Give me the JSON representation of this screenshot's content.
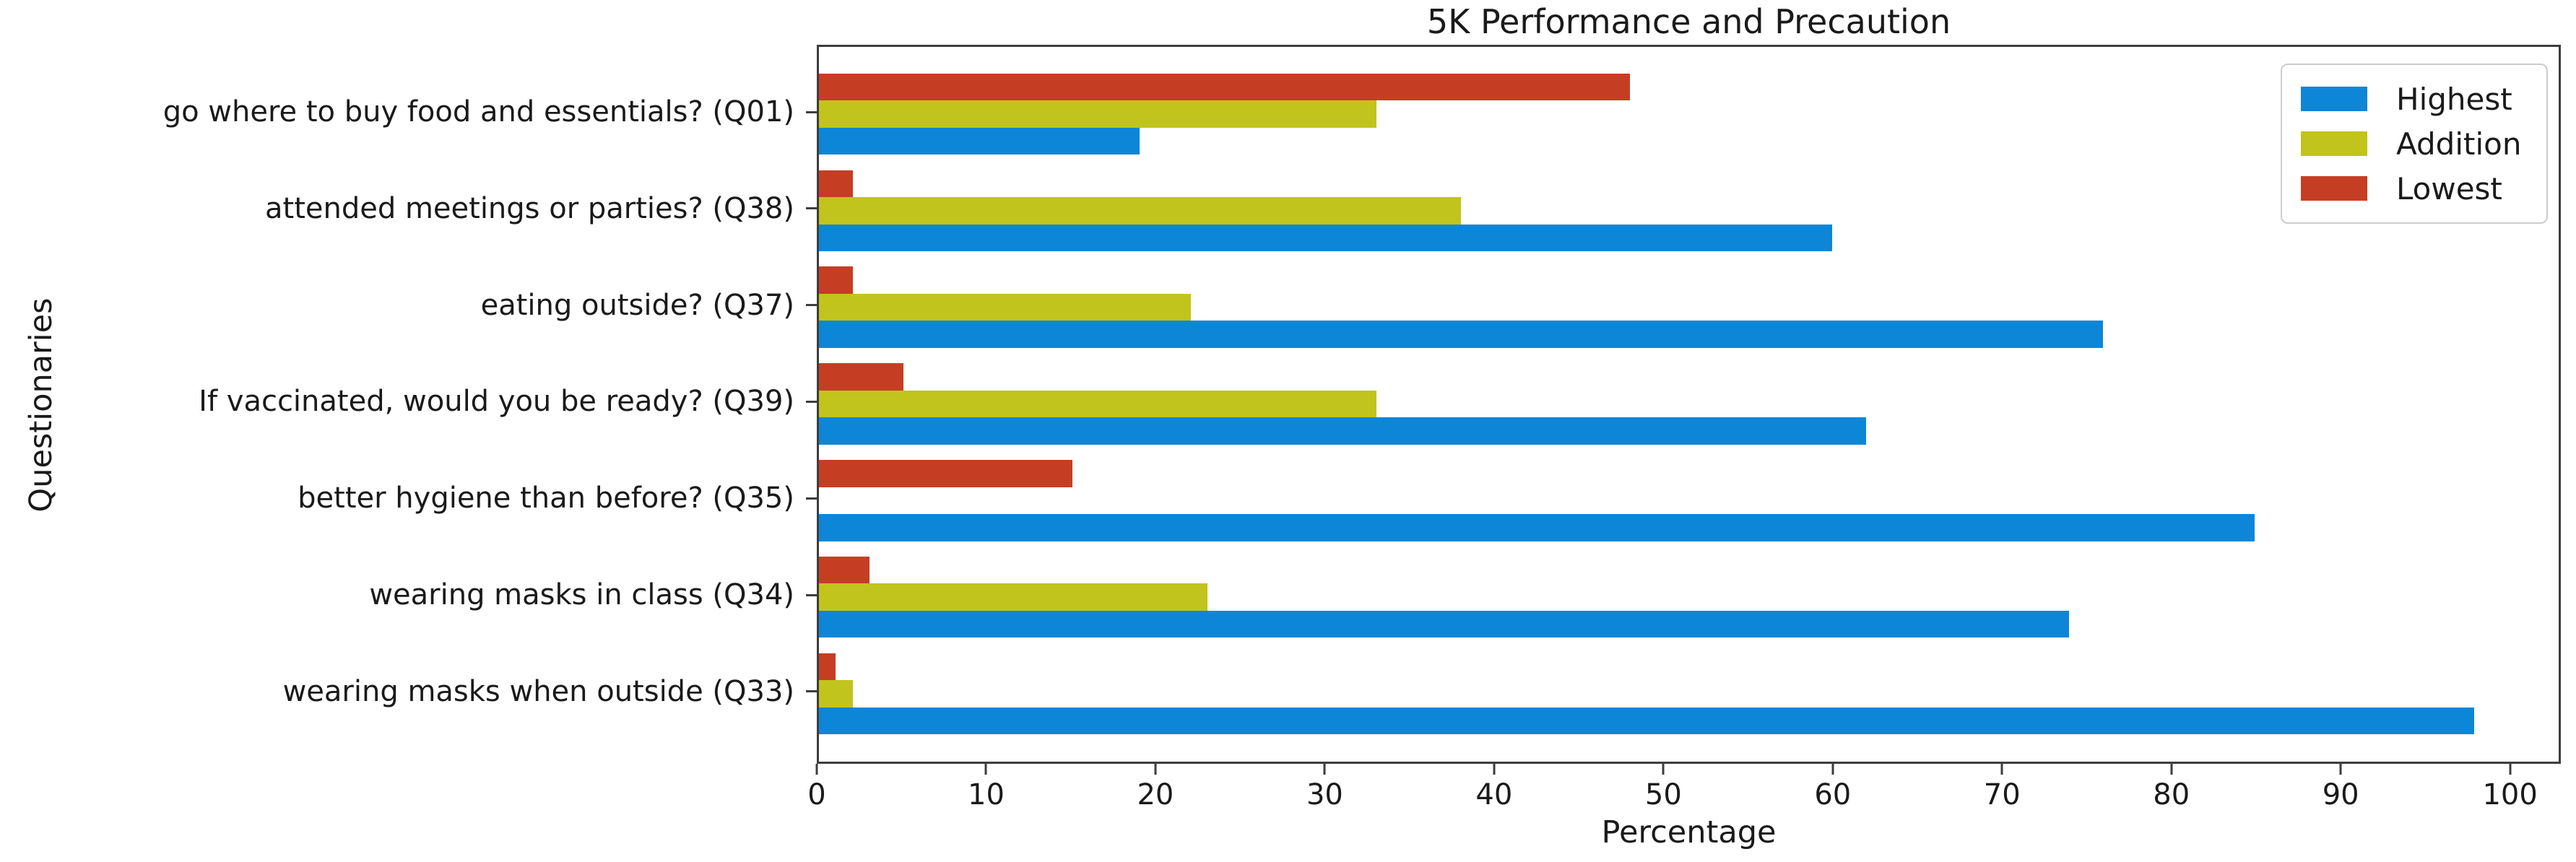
{
  "chart_data": {
    "type": "bar",
    "orientation": "horizontal",
    "title": "5K Performance and Precaution",
    "xlabel": "Percentage",
    "ylabel": "Questionaries",
    "categories": [
      "go where to buy food and essentials? (Q01)",
      "attended meetings or parties? (Q38)",
      "eating outside? (Q37)",
      "If vaccinated, would you be ready? (Q39)",
      "better hygiene than before? (Q35)",
      "wearing masks in class (Q34)",
      "wearing masks when outside (Q33)"
    ],
    "series": [
      {
        "name": "Highest",
        "color": "#0d86d8",
        "values": [
          19,
          60,
          76,
          62,
          85,
          74,
          98
        ]
      },
      {
        "name": "Addition",
        "color": "#c1c41c",
        "values": [
          33,
          38,
          22,
          33,
          0,
          23,
          2
        ]
      },
      {
        "name": "Lowest",
        "color": "#c53e24",
        "values": [
          48,
          2,
          2,
          5,
          15,
          3,
          1
        ]
      }
    ],
    "bar_order_top_to_bottom": [
      "Lowest",
      "Addition",
      "Highest"
    ],
    "x_ticks": [
      0,
      10,
      20,
      30,
      40,
      50,
      60,
      70,
      80,
      90,
      100
    ],
    "xlim": [
      0,
      103
    ],
    "grid": false,
    "legend": {
      "position": "upper right",
      "entries": [
        "Highest",
        "Addition",
        "Lowest"
      ]
    }
  }
}
